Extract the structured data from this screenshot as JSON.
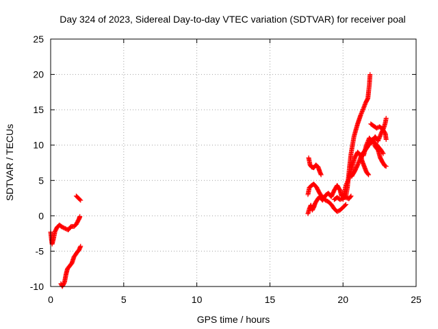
{
  "chart_data": {
    "type": "scatter",
    "title": "Day 324 of 2023, Sidereal Day-to-day VTEC variation (SDTVAR) for receiver poal",
    "xlabel": "GPS time / hours",
    "ylabel": "SDTVAR / TECUs",
    "xlim": [
      0,
      25
    ],
    "ylim": [
      -10,
      25
    ],
    "xticks": [
      "0",
      "5",
      "10",
      "15",
      "20",
      "25"
    ],
    "yticks": [
      "-10",
      "-5",
      "0",
      "5",
      "10",
      "15",
      "20",
      "25"
    ],
    "grid": true,
    "marker": "+",
    "color": "#ff0000",
    "segments": [
      [
        [
          0.0,
          -2.3
        ],
        [
          0.05,
          -3.2
        ],
        [
          0.1,
          -4.0
        ],
        [
          0.2,
          -3.2
        ],
        [
          0.3,
          -2.2
        ],
        [
          0.45,
          -1.6
        ],
        [
          0.6,
          -1.3
        ],
        [
          0.8,
          -1.6
        ],
        [
          1.0,
          -1.8
        ],
        [
          1.2,
          -2.0
        ],
        [
          1.4,
          -1.5
        ],
        [
          1.6,
          -1.5
        ],
        [
          1.75,
          -1.2
        ],
        [
          1.85,
          -0.8
        ],
        [
          1.95,
          -0.4
        ],
        [
          2.0,
          -0.1
        ]
      ],
      [
        [
          0.7,
          -9.6
        ],
        [
          0.8,
          -10.0
        ],
        [
          0.95,
          -9.4
        ],
        [
          1.05,
          -8.3
        ],
        [
          1.15,
          -7.5
        ],
        [
          1.3,
          -7.1
        ],
        [
          1.45,
          -6.7
        ],
        [
          1.6,
          -5.8
        ],
        [
          1.8,
          -5.2
        ],
        [
          1.95,
          -4.8
        ],
        [
          2.05,
          -4.3
        ]
      ],
      [
        [
          1.75,
          2.8
        ],
        [
          1.85,
          2.6
        ],
        [
          1.95,
          2.4
        ],
        [
          2.05,
          2.2
        ]
      ],
      [
        [
          17.65,
          8.2
        ],
        [
          17.75,
          7.2
        ],
        [
          17.85,
          6.9
        ],
        [
          18.0,
          6.8
        ],
        [
          18.15,
          7.2
        ],
        [
          18.3,
          6.9
        ],
        [
          18.4,
          6.3
        ],
        [
          18.5,
          5.8
        ]
      ],
      [
        [
          17.6,
          3.0
        ],
        [
          17.7,
          4.0
        ],
        [
          17.85,
          4.3
        ],
        [
          18.0,
          4.5
        ],
        [
          18.2,
          4.0
        ],
        [
          18.4,
          3.2
        ],
        [
          18.6,
          2.6
        ],
        [
          18.8,
          2.2
        ],
        [
          19.0,
          2.0
        ],
        [
          19.2,
          1.6
        ],
        [
          19.4,
          1.0
        ],
        [
          19.6,
          0.6
        ],
        [
          19.8,
          0.8
        ],
        [
          20.0,
          1.2
        ],
        [
          20.2,
          1.6
        ]
      ],
      [
        [
          17.6,
          0.3
        ],
        [
          17.7,
          1.0
        ],
        [
          17.8,
          1.5
        ],
        [
          17.9,
          0.8
        ],
        [
          18.0,
          1.2
        ],
        [
          18.1,
          1.8
        ],
        [
          18.25,
          2.3
        ],
        [
          18.4,
          2.7
        ],
        [
          18.6,
          2.2
        ],
        [
          18.8,
          2.9
        ],
        [
          19.0,
          3.2
        ],
        [
          19.2,
          2.7
        ],
        [
          19.4,
          3.6
        ],
        [
          19.6,
          4.3
        ],
        [
          19.8,
          3.6
        ],
        [
          19.9,
          2.8
        ],
        [
          20.0,
          3.0
        ],
        [
          20.2,
          2.6
        ],
        [
          20.4,
          2.4
        ],
        [
          20.55,
          2.8
        ]
      ],
      [
        [
          19.4,
          2.3
        ],
        [
          19.6,
          2.6
        ],
        [
          19.8,
          2.3
        ],
        [
          20.0,
          2.5
        ],
        [
          20.2,
          2.8
        ],
        [
          20.3,
          4.0
        ],
        [
          20.35,
          5.0
        ],
        [
          20.45,
          7.0
        ],
        [
          20.55,
          8.8
        ],
        [
          20.65,
          10.0
        ],
        [
          20.75,
          11.2
        ],
        [
          20.9,
          12.3
        ],
        [
          21.0,
          13.0
        ],
        [
          21.2,
          14.2
        ],
        [
          21.4,
          15.2
        ],
        [
          21.55,
          16.0
        ],
        [
          21.7,
          16.6
        ],
        [
          21.8,
          18.5
        ],
        [
          21.85,
          20.0
        ]
      ],
      [
        [
          20.0,
          2.3
        ],
        [
          20.2,
          4.3
        ],
        [
          20.4,
          5.3
        ],
        [
          20.6,
          6.8
        ],
        [
          20.8,
          8.2
        ],
        [
          21.0,
          9.0
        ],
        [
          21.2,
          8.6
        ],
        [
          21.3,
          7.8
        ],
        [
          21.45,
          7.0
        ],
        [
          21.6,
          6.2
        ],
        [
          21.75,
          5.8
        ]
      ],
      [
        [
          20.6,
          5.6
        ],
        [
          20.8,
          6.3
        ],
        [
          21.0,
          7.2
        ],
        [
          21.3,
          8.7
        ],
        [
          21.6,
          9.5
        ],
        [
          21.8,
          10.2
        ],
        [
          22.0,
          10.7
        ],
        [
          22.2,
          10.3
        ],
        [
          22.4,
          9.8
        ],
        [
          22.6,
          9.3
        ],
        [
          22.75,
          8.8
        ]
      ],
      [
        [
          21.8,
          10.0
        ],
        [
          22.0,
          10.8
        ],
        [
          22.2,
          9.8
        ],
        [
          22.4,
          9.3
        ],
        [
          22.55,
          8.2
        ],
        [
          22.7,
          7.6
        ],
        [
          22.85,
          7.1
        ],
        [
          22.95,
          7.0
        ]
      ],
      [
        [
          21.4,
          8.5
        ],
        [
          21.6,
          10.0
        ],
        [
          21.8,
          11.0
        ],
        [
          22.0,
          10.5
        ],
        [
          22.2,
          11.2
        ],
        [
          22.4,
          10.6
        ],
        [
          22.6,
          11.6
        ],
        [
          22.8,
          12.5
        ],
        [
          22.9,
          13.2
        ],
        [
          22.95,
          13.8
        ]
      ],
      [
        [
          21.9,
          13.0
        ],
        [
          22.1,
          12.7
        ],
        [
          22.3,
          12.4
        ],
        [
          22.5,
          12.6
        ],
        [
          22.7,
          12.3
        ],
        [
          22.9,
          11.6
        ],
        [
          22.95,
          10.8
        ]
      ]
    ]
  }
}
